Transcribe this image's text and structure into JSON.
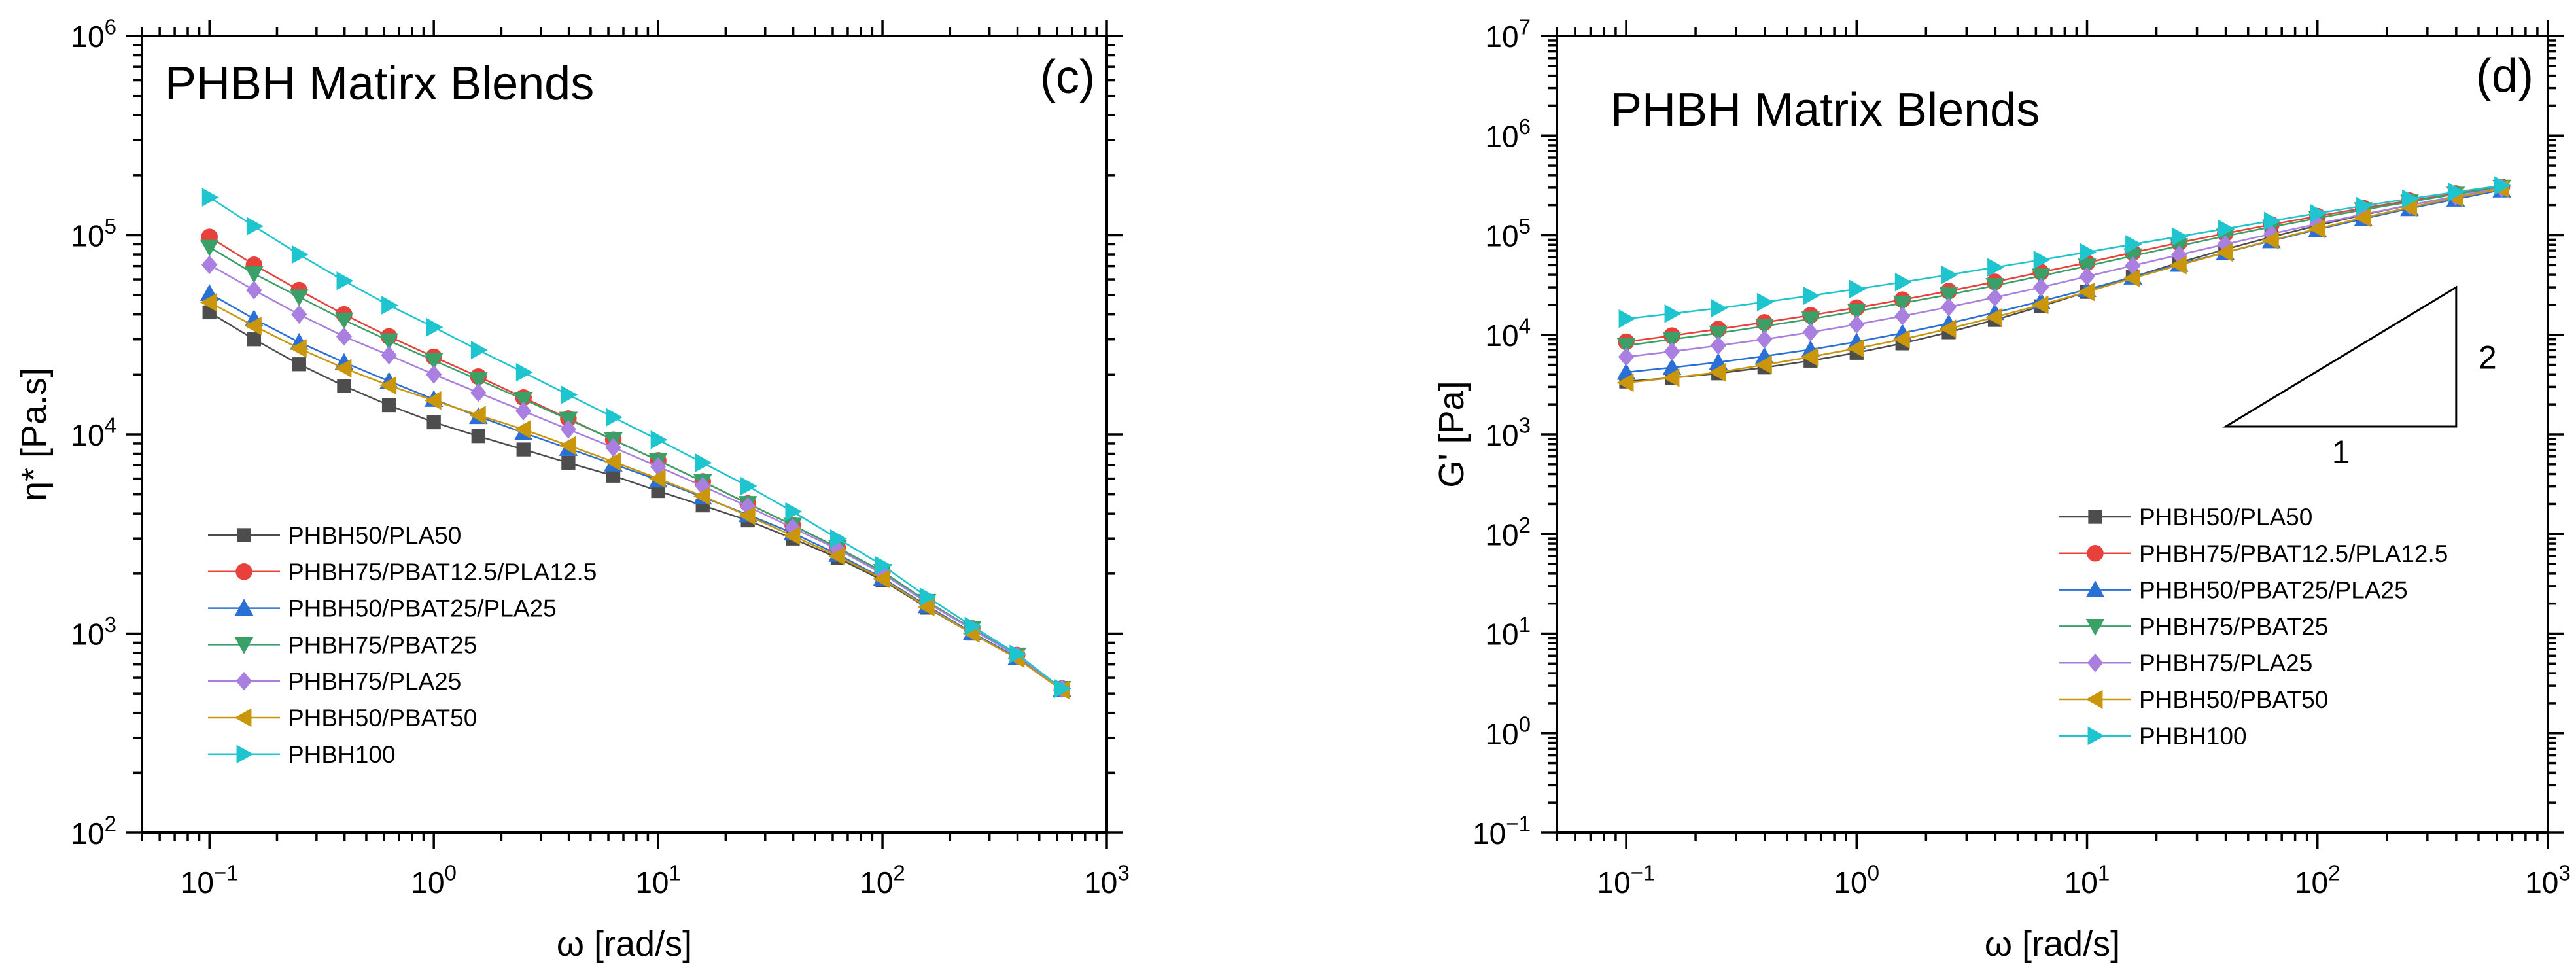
{
  "colors": {
    "PHBH50/PLA50": "#4d4d4d",
    "PHBH75/PBAT12.5/PLA12.5": "#e8403a",
    "PHBH50/PBAT25/PLA25": "#2a6fd6",
    "PHBH75/PBAT25": "#3aa068",
    "PHBH75/PLA25": "#a97fe0",
    "PHBH50/PBAT50": "#c9960c",
    "PHBH100": "#1ec5cf"
  },
  "chart_data": [
    {
      "type": "line",
      "scale": "log-log",
      "title": "PHBH Matirx Blends",
      "panel_label": "(c)",
      "xlabel": "ω [rad/s]",
      "ylabel": "η* [Pa.s]",
      "xlim": [
        0.05,
        1000
      ],
      "ylim": [
        100,
        1000000
      ],
      "x_ticks": [
        {
          "base": "10",
          "exp": "−1",
          "value": 0.1
        },
        {
          "base": "10",
          "exp": "0",
          "value": 1
        },
        {
          "base": "10",
          "exp": "1",
          "value": 10
        },
        {
          "base": "10",
          "exp": "2",
          "value": 100
        },
        {
          "base": "10",
          "exp": "3",
          "value": 1000
        }
      ],
      "y_ticks": [
        {
          "base": "10",
          "exp": "2",
          "value": 100
        },
        {
          "base": "10",
          "exp": "3",
          "value": 1000
        },
        {
          "base": "10",
          "exp": "4",
          "value": 10000
        },
        {
          "base": "10",
          "exp": "5",
          "value": 100000
        },
        {
          "base": "10",
          "exp": "6",
          "value": 1000000
        }
      ],
      "legend_position": "bottom-left",
      "x": [
        0.1,
        0.158,
        0.251,
        0.398,
        0.631,
        1,
        1.58,
        2.51,
        3.98,
        6.31,
        10,
        15.8,
        25.1,
        39.8,
        63.1,
        100,
        158,
        251,
        398,
        631
      ],
      "series": [
        {
          "name": "PHBH50/PLA50",
          "marker": "square",
          "values": [
            41000,
            30000,
            22500,
            17500,
            14000,
            11500,
            9800,
            8400,
            7200,
            6200,
            5200,
            4400,
            3700,
            3000,
            2400,
            1850,
            1350,
            1000,
            760,
            520
          ]
        },
        {
          "name": "PHBH75/PBAT12.5/PLA12.5",
          "marker": "circle",
          "values": [
            98000,
            71000,
            53000,
            40000,
            31000,
            24500,
            19500,
            15300,
            12000,
            9400,
            7400,
            5800,
            4500,
            3500,
            2700,
            2050,
            1450,
            1060,
            780,
            530
          ]
        },
        {
          "name": "PHBH50/PBAT25/PLA25",
          "marker": "triangle-up",
          "values": [
            51000,
            38000,
            29000,
            23000,
            18500,
            15000,
            12300,
            10200,
            8500,
            7100,
            5900,
            4850,
            3950,
            3200,
            2500,
            1900,
            1380,
            1010,
            760,
            525
          ]
        },
        {
          "name": "PHBH75/PBAT25",
          "marker": "triangle-down",
          "values": [
            87000,
            64000,
            49000,
            37500,
            29500,
            23500,
            18800,
            15000,
            11900,
            9400,
            7400,
            5800,
            4500,
            3500,
            2700,
            2050,
            1450,
            1060,
            780,
            530
          ]
        },
        {
          "name": "PHBH75/PLA25",
          "marker": "diamond",
          "values": [
            71000,
            53000,
            40000,
            31000,
            25000,
            20000,
            16200,
            13100,
            10600,
            8600,
            6900,
            5500,
            4350,
            3400,
            2650,
            2000,
            1430,
            1050,
            775,
            528
          ]
        },
        {
          "name": "PHBH50/PBAT50",
          "marker": "triangle-left",
          "values": [
            46000,
            35000,
            27000,
            21500,
            17600,
            14800,
            12500,
            10600,
            8800,
            7300,
            6000,
            4900,
            3900,
            3100,
            2450,
            1880,
            1360,
            1000,
            750,
            520
          ]
        },
        {
          "name": "PHBH100",
          "marker": "triangle-right",
          "values": [
            155000,
            111000,
            80000,
            59000,
            44500,
            34500,
            26500,
            20500,
            15800,
            12200,
            9400,
            7200,
            5500,
            4100,
            3000,
            2200,
            1530,
            1090,
            790,
            530
          ]
        }
      ]
    },
    {
      "type": "line",
      "scale": "log-log",
      "title": "PHBH Matrix Blends",
      "panel_label": "(d)",
      "xlabel": "ω [rad/s]",
      "ylabel": "G' [Pa]",
      "xlim": [
        0.05,
        1000
      ],
      "ylim": [
        0.1,
        10000000
      ],
      "x_ticks": [
        {
          "base": "10",
          "exp": "−1",
          "value": 0.1
        },
        {
          "base": "10",
          "exp": "0",
          "value": 1
        },
        {
          "base": "10",
          "exp": "1",
          "value": 10
        },
        {
          "base": "10",
          "exp": "2",
          "value": 100
        },
        {
          "base": "10",
          "exp": "3",
          "value": 1000
        }
      ],
      "y_ticks": [
        {
          "base": "10",
          "exp": "−1",
          "value": 0.1
        },
        {
          "base": "10",
          "exp": "0",
          "value": 1
        },
        {
          "base": "10",
          "exp": "1",
          "value": 10
        },
        {
          "base": "10",
          "exp": "2",
          "value": 100
        },
        {
          "base": "10",
          "exp": "3",
          "value": 1000
        },
        {
          "base": "10",
          "exp": "4",
          "value": 10000
        },
        {
          "base": "10",
          "exp": "5",
          "value": 100000
        },
        {
          "base": "10",
          "exp": "6",
          "value": 1000000
        },
        {
          "base": "10",
          "exp": "7",
          "value": 10000000
        }
      ],
      "legend_position": "bottom-right",
      "slope_triangle": {
        "run_label": "1",
        "rise_label": "2",
        "corner_x": 400,
        "corner_y": 1200,
        "base_start_x": 40,
        "top_y": 30000
      },
      "x": [
        0.1,
        0.158,
        0.251,
        0.398,
        0.631,
        1,
        1.58,
        2.51,
        3.98,
        6.31,
        10,
        15.8,
        25.1,
        39.8,
        63.1,
        100,
        158,
        251,
        398,
        631
      ],
      "series": [
        {
          "name": "PHBH50/PLA50",
          "marker": "square",
          "values": [
            3400,
            3700,
            4100,
            4700,
            5500,
            6600,
            8200,
            10600,
            14100,
            19300,
            27000,
            38000,
            53000,
            72000,
            96000,
            125000,
            160000,
            200000,
            245000,
            290000
          ]
        },
        {
          "name": "PHBH75/PBAT12.5/PLA12.5",
          "marker": "circle",
          "values": [
            8500,
            9800,
            11400,
            13300,
            15700,
            18700,
            22500,
            27500,
            34000,
            42500,
            53000,
            67000,
            84000,
            104000,
            128000,
            155000,
            187000,
            222000,
            262000,
            305000
          ]
        },
        {
          "name": "PHBH50/PBAT25/PLA25",
          "marker": "triangle-up",
          "values": [
            4200,
            4700,
            5300,
            6100,
            7100,
            8500,
            10400,
            13000,
            16700,
            21700,
            28500,
            38000,
            51000,
            67000,
            88000,
            114000,
            146000,
            185000,
            230000,
            285000
          ]
        },
        {
          "name": "PHBH75/PBAT25",
          "marker": "triangle-down",
          "values": [
            7800,
            9000,
            10400,
            12200,
            14400,
            17200,
            20800,
            25300,
            31200,
            39000,
            49000,
            62000,
            78000,
            98000,
            121000,
            148000,
            180000,
            216000,
            258000,
            303000
          ]
        },
        {
          "name": "PHBH75/PLA25",
          "marker": "diamond",
          "values": [
            6000,
            6800,
            7800,
            9000,
            10600,
            12700,
            15400,
            19000,
            23700,
            30000,
            38500,
            49500,
            63500,
            81000,
            103000,
            130000,
            162000,
            200000,
            245000,
            298000
          ]
        },
        {
          "name": "PHBH50/PBAT50",
          "marker": "triangle-left",
          "values": [
            3300,
            3700,
            4200,
            5000,
            6000,
            7300,
            9000,
            11500,
            15000,
            20000,
            27000,
            37000,
            50000,
            67000,
            89000,
            116000,
            150000,
            190000,
            238000,
            292000
          ]
        },
        {
          "name": "PHBH100",
          "marker": "triangle-right",
          "values": [
            14500,
            16300,
            18500,
            21300,
            24700,
            28800,
            33800,
            40000,
            47500,
            56500,
            67500,
            81000,
            97000,
            116000,
            139000,
            166000,
            197000,
            232000,
            271000,
            315000
          ]
        }
      ]
    }
  ]
}
